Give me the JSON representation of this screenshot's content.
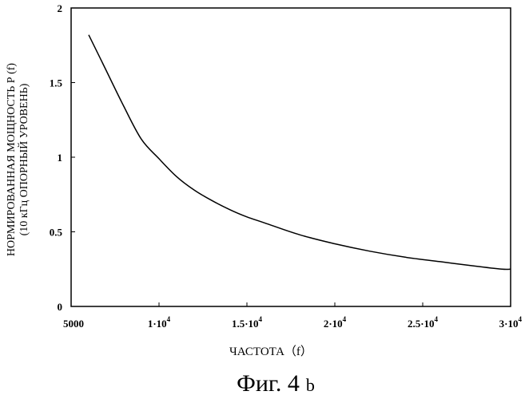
{
  "chart_data": {
    "type": "line",
    "ylabel_line1": "НОРМИРОВАННАЯ  МОЩНОСТЬ Р (f)",
    "ylabel_line2": "(10 кГц ОПОРНЫЙ УРОВЕНЬ)",
    "xlabel": "ЧАСТОТА（f）",
    "caption": "Фиг. 4",
    "caption_suffix": "b",
    "xlim": [
      5000,
      30000
    ],
    "ylim": [
      0,
      2
    ],
    "grid": false,
    "x_ticks": [
      {
        "value": 5000,
        "base": "5000",
        "exp": ""
      },
      {
        "value": 10000,
        "base": "1·10",
        "exp": "4"
      },
      {
        "value": 15000,
        "base": "1.5·10",
        "exp": "4"
      },
      {
        "value": 20000,
        "base": "2·10",
        "exp": "4"
      },
      {
        "value": 25000,
        "base": "2.5·10",
        "exp": "4"
      },
      {
        "value": 30000,
        "base": "3·10",
        "exp": "4"
      }
    ],
    "y_ticks": [
      {
        "value": 0,
        "label": "0"
      },
      {
        "value": 0.5,
        "label": "0.5"
      },
      {
        "value": 1,
        "label": "1"
      },
      {
        "value": 1.5,
        "label": "1.5"
      },
      {
        "value": 2,
        "label": "2"
      }
    ],
    "series": [
      {
        "x": [
          6000,
          7000,
          8000,
          9000,
          10000,
          11000,
          12000,
          13000,
          14000,
          15000,
          16000,
          18000,
          20000,
          22000,
          24000,
          26000,
          28000,
          29500,
          30000
        ],
        "y": [
          1.82,
          1.58,
          1.34,
          1.12,
          0.99,
          0.87,
          0.78,
          0.71,
          0.65,
          0.6,
          0.56,
          0.48,
          0.42,
          0.37,
          0.33,
          0.3,
          0.27,
          0.25,
          0.25
        ]
      }
    ]
  }
}
